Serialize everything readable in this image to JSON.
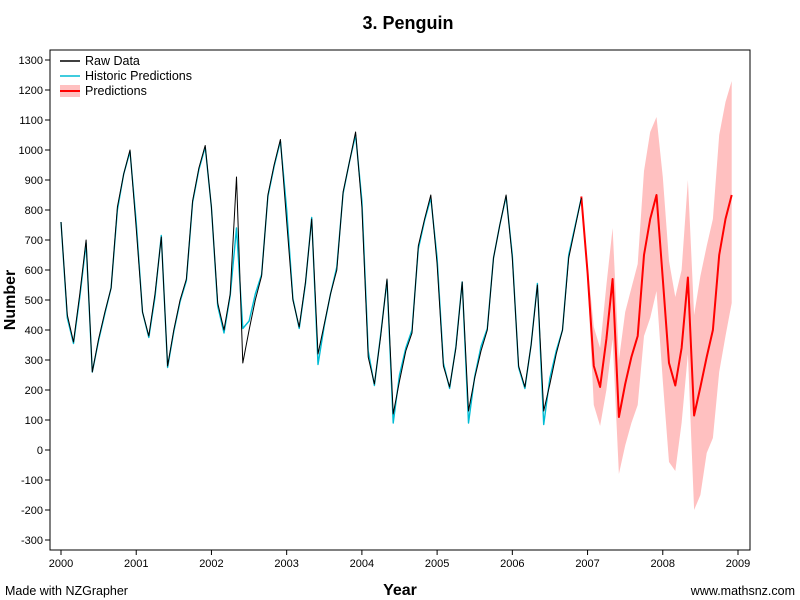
{
  "footer": {
    "left": "Made with NZGrapher",
    "right": "www.mathsnz.com"
  },
  "chart_data": {
    "type": "line",
    "title": "3. Penguin",
    "xlabel": "Year",
    "ylabel": "Number",
    "xlim": [
      2000,
      2009
    ],
    "ylim": [
      -300,
      1300
    ],
    "x_ticks": [
      "2000",
      "2001",
      "2002",
      "2003",
      "2004",
      "2005",
      "2006",
      "2007",
      "2008",
      "2009"
    ],
    "y_ticks": [
      "-300",
      "-200",
      "-100",
      "0",
      "100",
      "200",
      "300",
      "400",
      "500",
      "600",
      "700",
      "800",
      "900",
      "1000",
      "1100",
      "1200",
      "1300"
    ],
    "legend_position": "top-left",
    "grid": false,
    "x_step": 0.08333333,
    "series": [
      {
        "name": "Raw Data",
        "color": "#000000",
        "x_start": 2000,
        "values": [
          760,
          450,
          360,
          520,
          700,
          260,
          370,
          460,
          540,
          810,
          920,
          1000,
          740,
          460,
          380,
          520,
          710,
          280,
          400,
          500,
          570,
          830,
          940,
          1015,
          810,
          490,
          400,
          520,
          910,
          290,
          400,
          500,
          580,
          850,
          950,
          1035,
          760,
          500,
          410,
          560,
          770,
          320,
          420,
          520,
          600,
          860,
          960,
          1060,
          810,
          310,
          220,
          380,
          570,
          120,
          230,
          330,
          390,
          680,
          770,
          850,
          620,
          280,
          210,
          340,
          560,
          130,
          240,
          330,
          400,
          640,
          750,
          850,
          640,
          280,
          210,
          350,
          550,
          130,
          220,
          320,
          400,
          640,
          740,
          840
        ]
      },
      {
        "name": "Historic Predictions",
        "color": "#00bcd4",
        "x_start": 2000,
        "values": [
          760,
          440,
          355,
          510,
          690,
          260,
          365,
          455,
          540,
          800,
          920,
          995,
          760,
          460,
          375,
          510,
          715,
          275,
          395,
          495,
          565,
          825,
          935,
          1010,
          810,
          480,
          390,
          515,
          740,
          405,
          430,
          520,
          585,
          845,
          945,
          1030,
          800,
          505,
          405,
          555,
          775,
          285,
          415,
          520,
          610,
          855,
          960,
          1050,
          830,
          330,
          215,
          385,
          565,
          90,
          250,
          340,
          400,
          670,
          765,
          840,
          640,
          290,
          205,
          345,
          560,
          90,
          245,
          345,
          405,
          640,
          750,
          845,
          650,
          275,
          205,
          350,
          555,
          85,
          240,
          330,
          400,
          650,
          745,
          840
        ]
      },
      {
        "name": "Predictions",
        "color": "#ff0000",
        "band_color": "#ffc0c0",
        "x_start": 2006.9166667,
        "values": [
          845,
          590,
          280,
          210,
          370,
          570,
          110,
          220,
          310,
          380,
          650,
          770,
          850,
          570,
          290,
          215,
          340,
          575,
          115,
          210,
          310,
          400,
          650,
          770,
          850
        ],
        "lower": [
          845,
          560,
          150,
          80,
          200,
          370,
          -80,
          15,
          90,
          150,
          380,
          440,
          530,
          230,
          -40,
          -70,
          90,
          320,
          -200,
          -150,
          -10,
          40,
          260,
          380,
          490
        ],
        "upper": [
          845,
          620,
          410,
          340,
          550,
          740,
          300,
          460,
          540,
          620,
          930,
          1060,
          1110,
          910,
          630,
          510,
          600,
          900,
          450,
          580,
          680,
          770,
          1050,
          1160,
          1230
        ]
      }
    ]
  }
}
